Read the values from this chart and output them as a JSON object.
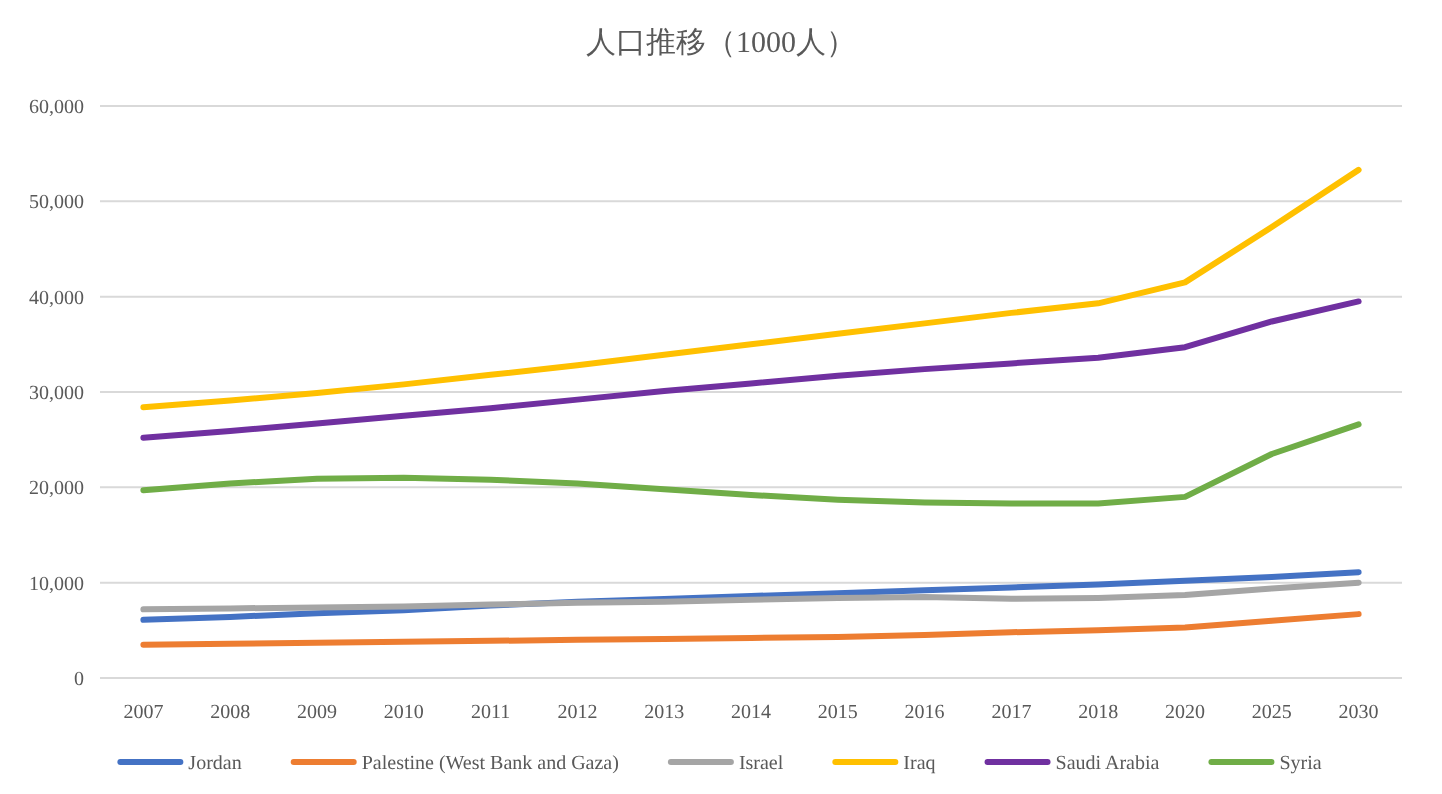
{
  "chart_data": {
    "type": "line",
    "title": "人口推移（1000人）",
    "categories": [
      "2007",
      "2008",
      "2009",
      "2010",
      "2011",
      "2012",
      "2013",
      "2014",
      "2015",
      "2016",
      "2017",
      "2018",
      "2020",
      "2025",
      "2030"
    ],
    "ylim": [
      0,
      60000
    ],
    "yticks": [
      {
        "value": 0,
        "label": "0"
      },
      {
        "value": 10000,
        "label": "10,000"
      },
      {
        "value": 20000,
        "label": "20,000"
      },
      {
        "value": 30000,
        "label": "30,000"
      },
      {
        "value": 40000,
        "label": "40,000"
      },
      {
        "value": 50000,
        "label": "50,000"
      },
      {
        "value": 60000,
        "label": "60,000"
      }
    ],
    "grid": "y",
    "legend": "bottom",
    "marker": "none",
    "line_style": "solid",
    "series": [
      {
        "name": "Jordan",
        "color": "#4472c4",
        "values": [
          6100,
          6400,
          6800,
          7100,
          7600,
          8000,
          8300,
          8600,
          8900,
          9200,
          9500,
          9800,
          10200,
          10600,
          11100
        ]
      },
      {
        "name": "Palestine (West Bank and Gaza)",
        "color": "#ed7d31",
        "values": [
          3500,
          3600,
          3700,
          3800,
          3900,
          4000,
          4100,
          4200,
          4300,
          4500,
          4800,
          5000,
          5300,
          6000,
          6700
        ]
      },
      {
        "name": "Israel",
        "color": "#a5a5a5",
        "values": [
          7200,
          7300,
          7400,
          7500,
          7700,
          7900,
          8000,
          8200,
          8400,
          8500,
          8300,
          8400,
          8700,
          9400,
          10000
        ]
      },
      {
        "name": "Iraq",
        "color": "#ffc000",
        "values": [
          28400,
          29100,
          29900,
          30800,
          31800,
          32800,
          33900,
          35000,
          36100,
          37200,
          38300,
          39300,
          41500,
          47300,
          53300
        ]
      },
      {
        "name": "Saudi Arabia",
        "color": "#7030a0",
        "values": [
          25200,
          25900,
          26700,
          27500,
          28300,
          29200,
          30100,
          30900,
          31700,
          32400,
          33000,
          33600,
          34700,
          37400,
          39500
        ]
      },
      {
        "name": "Syria",
        "color": "#70ad47",
        "values": [
          19700,
          20400,
          20900,
          21000,
          20800,
          20400,
          19800,
          19200,
          18700,
          18400,
          18300,
          18300,
          19000,
          23500,
          26600
        ]
      }
    ]
  }
}
